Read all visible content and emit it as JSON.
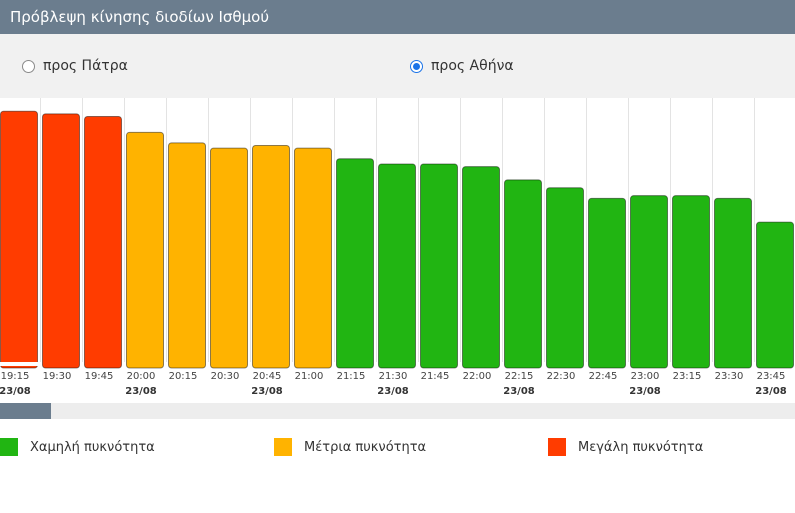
{
  "header": {
    "title": "Πρόβλεψη κίνησης διοδίων Ισθμού"
  },
  "direction": {
    "options": [
      {
        "label": "προς Πάτρα",
        "selected": false
      },
      {
        "label": "προς Αθήνα",
        "selected": true
      }
    ]
  },
  "chart_data": {
    "type": "bar",
    "categories": [
      "19:15",
      "19:30",
      "19:45",
      "20:00",
      "20:15",
      "20:30",
      "20:45",
      "21:00",
      "21:15",
      "21:30",
      "21:45",
      "22:00",
      "22:15",
      "22:30",
      "22:45",
      "23:00",
      "23:15",
      "23:30",
      "23:45"
    ],
    "dates": [
      "23/08",
      "",
      "",
      "23/08",
      "",
      "",
      "23/08",
      "",
      "",
      "23/08",
      "",
      "",
      "23/08",
      "",
      "",
      "23/08",
      "",
      "",
      "23/08"
    ],
    "values": [
      95,
      94,
      93,
      87,
      83,
      81,
      82,
      81,
      77,
      75,
      75,
      74,
      69,
      66,
      62,
      63,
      63,
      62,
      53
    ],
    "levels": [
      "high",
      "high",
      "high",
      "medium",
      "medium",
      "medium",
      "medium",
      "medium",
      "low",
      "low",
      "low",
      "low",
      "low",
      "low",
      "low",
      "low",
      "low",
      "low",
      "low"
    ],
    "ylim": [
      0,
      100
    ],
    "grid": true,
    "title": "",
    "xlabel": "",
    "ylabel": ""
  },
  "legend": {
    "items": [
      {
        "label": "Χαμηλή πυκνότητα",
        "color": "#21b512"
      },
      {
        "label": "Μέτρια πυκνότητα",
        "color": "#ffb300"
      },
      {
        "label": "Μεγάλη πυκνότητα",
        "color": "#ff3c00"
      }
    ]
  },
  "colors": {
    "low": "#21b512",
    "medium": "#ffb300",
    "high": "#ff3c00"
  }
}
